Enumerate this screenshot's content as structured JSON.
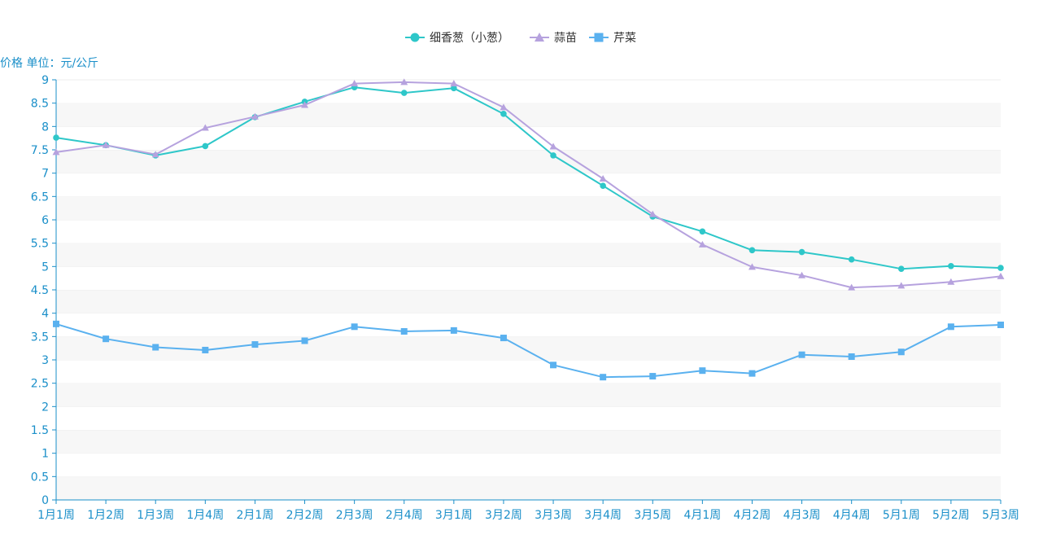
{
  "chart_data": {
    "type": "line",
    "ylabel": "价格 单位：元/公斤",
    "ylim": [
      0,
      9
    ],
    "y_ticks": [
      "0",
      "0.5",
      "1",
      "1.5",
      "2",
      "2.5",
      "3",
      "3.5",
      "4",
      "4.5",
      "5",
      "5.5",
      "6",
      "6.5",
      "7",
      "7.5",
      "8",
      "8.5",
      "9"
    ],
    "categories": [
      "1月1周",
      "1月2周",
      "1月3周",
      "1月4周",
      "2月1周",
      "2月2周",
      "2月3周",
      "2月4周",
      "3月1周",
      "3月2周",
      "3月3周",
      "3月4周",
      "3月5周",
      "4月1周",
      "4月2周",
      "4月3周",
      "4月4周",
      "5月1周",
      "5月2周",
      "5月3周"
    ],
    "legend_position": "top-center",
    "grid": "alternating horizontal bands",
    "series": [
      {
        "name": "细香葱（小葱）",
        "color": "#2ec7c9",
        "marker": "circle",
        "values": [
          7.76,
          7.6,
          7.38,
          7.58,
          8.2,
          8.53,
          8.84,
          8.72,
          8.82,
          8.27,
          7.38,
          6.73,
          6.07,
          5.75,
          5.35,
          5.31,
          5.15,
          4.95,
          5.01,
          4.97
        ]
      },
      {
        "name": "蒜苗",
        "color": "#b6a2de",
        "marker": "triangle",
        "values": [
          7.45,
          7.6,
          7.4,
          7.97,
          8.21,
          8.46,
          8.92,
          8.95,
          8.92,
          8.41,
          7.57,
          6.88,
          6.12,
          5.47,
          4.99,
          4.81,
          4.55,
          4.59,
          4.67,
          4.79
        ]
      },
      {
        "name": "芹菜",
        "color": "#5ab1ef",
        "marker": "square",
        "values": [
          3.77,
          3.45,
          3.27,
          3.21,
          3.33,
          3.41,
          3.71,
          3.61,
          3.63,
          3.47,
          2.89,
          2.63,
          2.65,
          2.77,
          2.71,
          3.11,
          3.07,
          3.17,
          3.71,
          3.75
        ]
      }
    ]
  }
}
